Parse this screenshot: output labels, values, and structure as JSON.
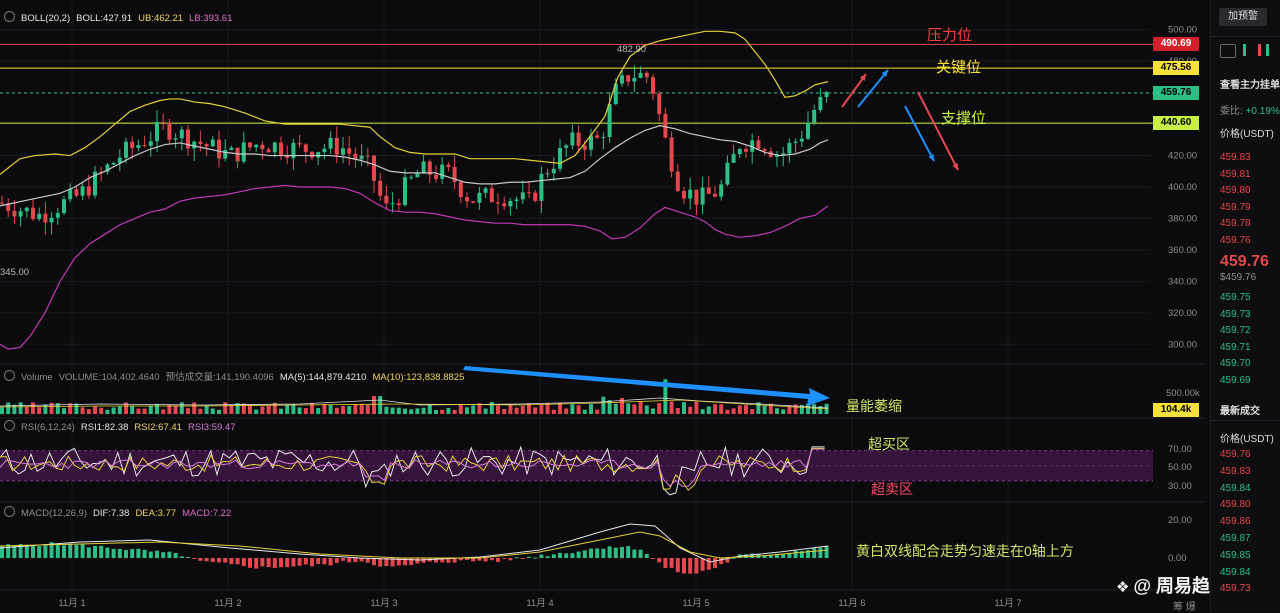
{
  "colors": {
    "up": "#2dbd85",
    "down": "#e5474e",
    "boll_mid": "#c8c8c8",
    "boll_upper": "#e3cf3a",
    "boll_lower": "#c03ab4",
    "annotation_pressure": "#ff3b3b",
    "annotation_key": "#f4e23a",
    "annotation_support": "#c8ef43",
    "annotation_green": "#cfe86a",
    "annotation_oversold": "#ff4a6a",
    "arrow_blue": "#1e90ff"
  },
  "main": {
    "header": {
      "label": "BOLL(20,2)",
      "boll": "BOLL:427.91",
      "ub": "UB:462.21",
      "lb": "LB:393.61"
    },
    "high_label": "482.90",
    "low_label": "345.00",
    "price_tags": [
      {
        "text": "490.69",
        "bg": "#d0202a",
        "fg": "#ffffff",
        "value": 490.69
      },
      {
        "text": "475.56",
        "bg": "#f4e23a",
        "fg": "#000000",
        "value": 475.56
      },
      {
        "text": "459.76",
        "bg": "#2dbd85",
        "fg": "#000000",
        "value": 459.76
      },
      {
        "text": "440.60",
        "bg": "#c8ef43",
        "fg": "#000000",
        "value": 440.6
      }
    ],
    "annotations": {
      "pressure": "压力位",
      "key": "关键位",
      "support": "支撑位"
    }
  },
  "volume": {
    "header": {
      "label": "Volume",
      "volume": "VOLUME:104,402.4640",
      "forecast": "预估成交量:141,190.4096",
      "ma5": "MA(5):144,879.4210",
      "ma10": "MA(10):123,838.8825"
    },
    "axis_label": "500.00k",
    "tag": "104.4k",
    "annotation": "量能萎缩"
  },
  "rsi": {
    "header": {
      "label": "RSI(6,12,24)",
      "rsi1": "RSI1:82.38",
      "rsi2": "RSI2:67.41",
      "rsi3": "RSI3:59.47"
    },
    "axis_labels": [
      "70.00",
      "50.00",
      "30.00"
    ],
    "annotation_overbought": "超买区",
    "annotation_oversold": "超卖区"
  },
  "macd": {
    "header": {
      "label": "MACD(12,26,9)",
      "dif": "DIF:7.38",
      "dea": "DEA:3.77",
      "macd": "MACD:7.22"
    },
    "axis_labels": [
      "20.00",
      "0.00"
    ],
    "annotation": "黄白双线配合走势匀速走在0轴上方"
  },
  "watermark": "@ 周易趋势",
  "side_panel": {
    "button": "加预警",
    "title": "查看主力挂单",
    "ratio_label": "委比:",
    "ratio_value": "+0.19%",
    "price_header": "价格(USDT)",
    "asks": [
      "459.83",
      "459.81",
      "459.80",
      "459.79",
      "459.78",
      "459.76"
    ],
    "last_price": "459.76",
    "last_price_usd": "$459.76",
    "bids": [
      "459.75",
      "459.73",
      "459.72",
      "459.71",
      "459.70",
      "459.69"
    ],
    "trades_title": "最新成交",
    "trades_price_header": "价格(USDT)",
    "trades": [
      {
        "price": "459.76",
        "side": "down"
      },
      {
        "price": "459.83",
        "side": "down"
      },
      {
        "price": "459.84",
        "side": "up"
      },
      {
        "price": "459.80",
        "side": "down"
      },
      {
        "price": "459.86",
        "side": "down"
      },
      {
        "price": "459.87",
        "side": "up"
      },
      {
        "price": "459.85",
        "side": "up"
      },
      {
        "price": "459.84",
        "side": "up"
      },
      {
        "price": "459.73",
        "side": "down"
      }
    ],
    "corner_label": "筹 爆"
  },
  "chart_data": {
    "type": "candlestick",
    "title": "",
    "x_tick_labels": [
      "11月 1",
      "11月 2",
      "11月 3",
      "11月 4",
      "11月 5",
      "11月 6",
      "11月 7"
    ],
    "y_tick_labels": [
      "500.00",
      "480.00",
      "460.00",
      "440.00",
      "420.00",
      "400.00",
      "380.00",
      "360.00",
      "340.00",
      "320.00",
      "300.00"
    ],
    "ylim": [
      290,
      510
    ],
    "horizontal_levels": [
      490.69,
      475.56,
      459.76,
      440.6
    ],
    "boll_upper_path": [
      [
        0,
        408
      ],
      [
        8,
        412
      ],
      [
        20,
        418
      ],
      [
        35,
        420
      ],
      [
        55,
        421
      ],
      [
        70,
        420
      ],
      [
        85,
        425
      ],
      [
        100,
        432
      ],
      [
        115,
        440
      ],
      [
        130,
        448
      ],
      [
        145,
        452
      ],
      [
        160,
        455
      ],
      [
        170,
        456
      ],
      [
        180,
        456
      ],
      [
        195,
        454
      ],
      [
        210,
        453
      ],
      [
        225,
        451
      ],
      [
        245,
        447
      ],
      [
        265,
        442
      ],
      [
        285,
        440
      ],
      [
        300,
        440
      ],
      [
        320,
        440
      ],
      [
        340,
        440
      ],
      [
        355,
        439
      ],
      [
        370,
        438
      ],
      [
        380,
        432
      ],
      [
        395,
        425
      ],
      [
        410,
        422
      ],
      [
        425,
        421
      ],
      [
        440,
        421
      ],
      [
        455,
        421
      ],
      [
        470,
        418
      ],
      [
        485,
        418
      ],
      [
        500,
        418
      ],
      [
        515,
        418
      ],
      [
        530,
        417
      ],
      [
        545,
        416
      ],
      [
        560,
        415
      ],
      [
        575,
        420
      ],
      [
        590,
        432
      ],
      [
        605,
        445
      ],
      [
        618,
        470
      ],
      [
        630,
        483
      ],
      [
        645,
        490
      ],
      [
        660,
        493
      ],
      [
        675,
        495
      ],
      [
        690,
        497
      ],
      [
        705,
        499
      ],
      [
        720,
        499
      ],
      [
        735,
        498
      ],
      [
        745,
        494
      ],
      [
        755,
        486
      ],
      [
        765,
        478
      ],
      [
        775,
        468
      ],
      [
        785,
        457
      ],
      [
        795,
        458
      ],
      [
        805,
        461
      ],
      [
        815,
        465
      ],
      [
        828,
        467
      ]
    ],
    "boll_mid_path": [
      [
        0,
        388
      ],
      [
        15,
        390
      ],
      [
        30,
        392
      ],
      [
        45,
        394
      ],
      [
        60,
        396
      ],
      [
        75,
        400
      ],
      [
        90,
        406
      ],
      [
        105,
        410
      ],
      [
        120,
        415
      ],
      [
        135,
        420
      ],
      [
        150,
        424
      ],
      [
        165,
        427
      ],
      [
        180,
        428
      ],
      [
        195,
        426
      ],
      [
        210,
        424
      ],
      [
        225,
        422
      ],
      [
        240,
        421
      ],
      [
        255,
        421
      ],
      [
        270,
        420
      ],
      [
        285,
        420
      ],
      [
        300,
        420
      ],
      [
        315,
        420
      ],
      [
        330,
        420
      ],
      [
        345,
        419
      ],
      [
        360,
        417
      ],
      [
        375,
        414
      ],
      [
        390,
        410
      ],
      [
        405,
        409
      ],
      [
        420,
        409
      ],
      [
        435,
        409
      ],
      [
        450,
        406
      ],
      [
        465,
        403
      ],
      [
        480,
        402
      ],
      [
        495,
        402
      ],
      [
        510,
        403
      ],
      [
        525,
        403
      ],
      [
        540,
        404
      ],
      [
        555,
        405
      ],
      [
        570,
        406
      ],
      [
        585,
        410
      ],
      [
        600,
        418
      ],
      [
        615,
        425
      ],
      [
        630,
        431
      ],
      [
        645,
        436
      ],
      [
        660,
        439
      ],
      [
        675,
        437
      ],
      [
        690,
        434
      ],
      [
        705,
        432
      ],
      [
        720,
        430
      ],
      [
        735,
        429
      ],
      [
        750,
        426
      ],
      [
        765,
        422
      ],
      [
        780,
        420
      ],
      [
        795,
        421
      ],
      [
        810,
        424
      ],
      [
        820,
        428
      ],
      [
        828,
        430
      ]
    ],
    "boll_lower_path": [
      [
        0,
        300
      ],
      [
        8,
        297
      ],
      [
        20,
        298
      ],
      [
        30,
        305
      ],
      [
        45,
        320
      ],
      [
        60,
        340
      ],
      [
        75,
        355
      ],
      [
        90,
        364
      ],
      [
        105,
        370
      ],
      [
        120,
        376
      ],
      [
        135,
        380
      ],
      [
        150,
        384
      ],
      [
        165,
        386
      ],
      [
        180,
        391
      ],
      [
        195,
        393
      ],
      [
        210,
        394
      ],
      [
        225,
        395
      ],
      [
        240,
        397
      ],
      [
        255,
        399
      ],
      [
        270,
        400
      ],
      [
        285,
        401
      ],
      [
        300,
        400
      ],
      [
        315,
        400
      ],
      [
        330,
        400
      ],
      [
        345,
        399
      ],
      [
        360,
        396
      ],
      [
        375,
        390
      ],
      [
        390,
        385
      ],
      [
        405,
        384
      ],
      [
        420,
        384
      ],
      [
        435,
        383
      ],
      [
        450,
        381
      ],
      [
        465,
        379
      ],
      [
        480,
        378
      ],
      [
        495,
        377
      ],
      [
        510,
        377
      ],
      [
        525,
        376
      ],
      [
        540,
        376
      ],
      [
        555,
        376
      ],
      [
        570,
        376
      ],
      [
        585,
        375
      ],
      [
        600,
        372
      ],
      [
        612,
        367
      ],
      [
        625,
        368
      ],
      [
        640,
        374
      ],
      [
        655,
        383
      ],
      [
        665,
        387
      ],
      [
        680,
        384
      ],
      [
        695,
        381
      ],
      [
        705,
        378
      ],
      [
        715,
        373
      ],
      [
        725,
        370
      ],
      [
        740,
        368
      ],
      [
        755,
        369
      ],
      [
        770,
        371
      ],
      [
        785,
        375
      ],
      [
        800,
        380
      ],
      [
        815,
        382
      ],
      [
        828,
        388
      ]
    ],
    "volume_axis_label": "500.00k",
    "rsi_band": [
      30,
      70
    ],
    "macd_zero_label": "0.00"
  }
}
